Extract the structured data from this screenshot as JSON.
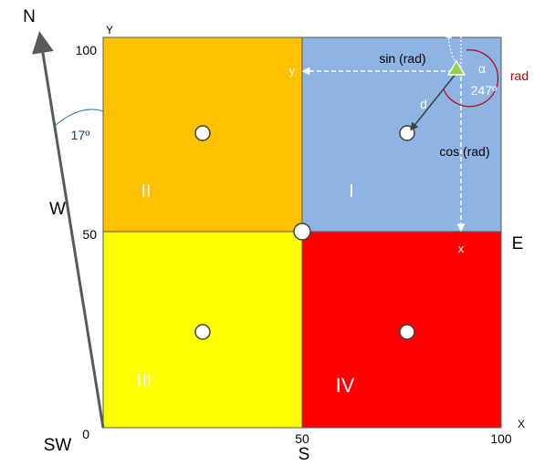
{
  "diagram": {
    "compass": {
      "north": "N",
      "west": "W",
      "south_west": "SW",
      "east": "E",
      "south": "S",
      "rotation_label": "17º"
    },
    "axes": {
      "y_axis_name": "Y",
      "x_axis_name": "X",
      "y_ticks": [
        "0",
        "50",
        "100"
      ],
      "x_ticks": [
        "50",
        "100"
      ]
    },
    "quadrants": [
      {
        "id": "I",
        "label": "I",
        "color": "#8eb4e3"
      },
      {
        "id": "II",
        "label": "II",
        "color": "#ffc000"
      },
      {
        "id": "III",
        "label": "III",
        "color": "#ffff00"
      },
      {
        "id": "IV",
        "label": "IV",
        "color": "#ff0000"
      }
    ],
    "annotations": {
      "sin": "sin (rad)",
      "cos": "cos (rad)",
      "y_marker": "y",
      "x_marker": "x",
      "d": "d",
      "alpha": "α",
      "angle": "247º",
      "rad": "rad"
    },
    "colors": {
      "arrow_gray": "#595959",
      "rad_red": "#c00000",
      "angle_arc_blue": "#2e75b6",
      "triangle_green": "#92d050",
      "grid_border": "#595959"
    }
  }
}
